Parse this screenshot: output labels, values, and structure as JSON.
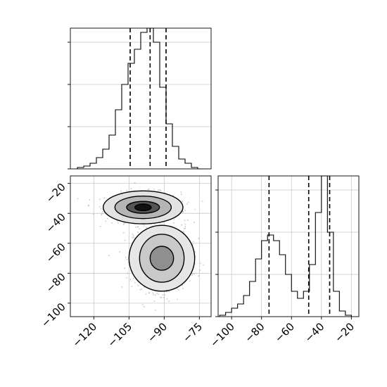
{
  "chart_data": {
    "type": "corner",
    "panels": [
      {
        "name": "hist-x",
        "type": "histogram",
        "xlim": [
          -130,
          -70
        ],
        "ylim": [
          0,
          1
        ],
        "grid": true,
        "bin_edges": [
          -127,
          -124.3,
          -121.6,
          -118.9,
          -116.2,
          -113.5,
          -110.8,
          -108.1,
          -105.4,
          -102.7,
          -100,
          -97.3,
          -94.6,
          -91.9,
          -89.2,
          -86.5,
          -83.8,
          -81.1,
          -78.4,
          -75.7,
          -73
        ],
        "heights": [
          0.01,
          0.02,
          0.04,
          0.08,
          0.14,
          0.24,
          0.42,
          0.6,
          0.75,
          0.85,
          0.97,
          1.0,
          0.9,
          0.58,
          0.32,
          0.16,
          0.07,
          0.04,
          0.01,
          0.0
        ],
        "quantile_lines": [
          -104.5,
          -96.0,
          -89.2
        ],
        "y_tick_values": [
          0,
          0.3,
          0.6,
          0.9
        ],
        "x_ticks": [],
        "y_ticks": []
      },
      {
        "name": "joint",
        "type": "2d-density-contour",
        "xlim": [
          -130,
          -70
        ],
        "ylim": [
          -109,
          -15
        ],
        "grid": true,
        "x_ticks": [
          "−120",
          "−105",
          "−90",
          "−75"
        ],
        "x_tick_values": [
          -120,
          -105,
          -90,
          -75
        ],
        "y_ticks": [
          "−20",
          "−40",
          "−60",
          "−80",
          "−100"
        ],
        "y_tick_values": [
          -20,
          -40,
          -60,
          -80,
          -100
        ],
        "clusters": [
          {
            "center": [
              -99,
              -36
            ],
            "spread": [
              8,
              5
            ],
            "contour_levels": [
              {
                "rx": 17,
                "ry": 11,
                "fill": "#e2e2e2"
              },
              {
                "rx": 12,
                "ry": 7.5,
                "fill": "#b5b5b5"
              },
              {
                "rx": 7,
                "ry": 4,
                "fill": "#555555"
              },
              {
                "rx": 3.5,
                "ry": 2.2,
                "fill": "#111111"
              }
            ],
            "points": 700
          },
          {
            "center": [
              -91,
              -70
            ],
            "spread": [
              6,
              11
            ],
            "contour_levels": [
              {
                "rx": 14,
                "ry": 22,
                "fill": "#e6e6e6"
              },
              {
                "rx": 9.5,
                "ry": 16,
                "fill": "#c9c9c9"
              },
              {
                "rx": 5,
                "ry": 8,
                "fill": "#8f8f8f"
              }
            ],
            "points": 700
          }
        ]
      },
      {
        "name": "hist-y",
        "type": "histogram",
        "xlim": [
          -109,
          -15
        ],
        "ylim": [
          0,
          1
        ],
        "grid": true,
        "bin_edges": [
          -108,
          -104,
          -100,
          -96,
          -92,
          -88,
          -84,
          -80,
          -76,
          -72,
          -68,
          -64,
          -60,
          -56,
          -52,
          -48,
          -44,
          -40,
          -36,
          -32,
          -28,
          -24,
          -20
        ],
        "heights": [
          0.01,
          0.03,
          0.06,
          0.09,
          0.15,
          0.25,
          0.41,
          0.54,
          0.58,
          0.54,
          0.44,
          0.3,
          0.18,
          0.13,
          0.18,
          0.37,
          0.74,
          1.0,
          0.6,
          0.18,
          0.04,
          0.01
        ],
        "quantile_lines": [
          -75.0,
          -48.5,
          -34.5
        ],
        "y_tick_values": [
          0,
          0.3,
          0.6,
          0.9
        ],
        "x_ticks": [
          "−100",
          "−80",
          "−60",
          "−40",
          "−20"
        ],
        "x_tick_values": [
          -100,
          -80,
          -60,
          -40,
          -20
        ],
        "y_ticks": []
      }
    ]
  }
}
